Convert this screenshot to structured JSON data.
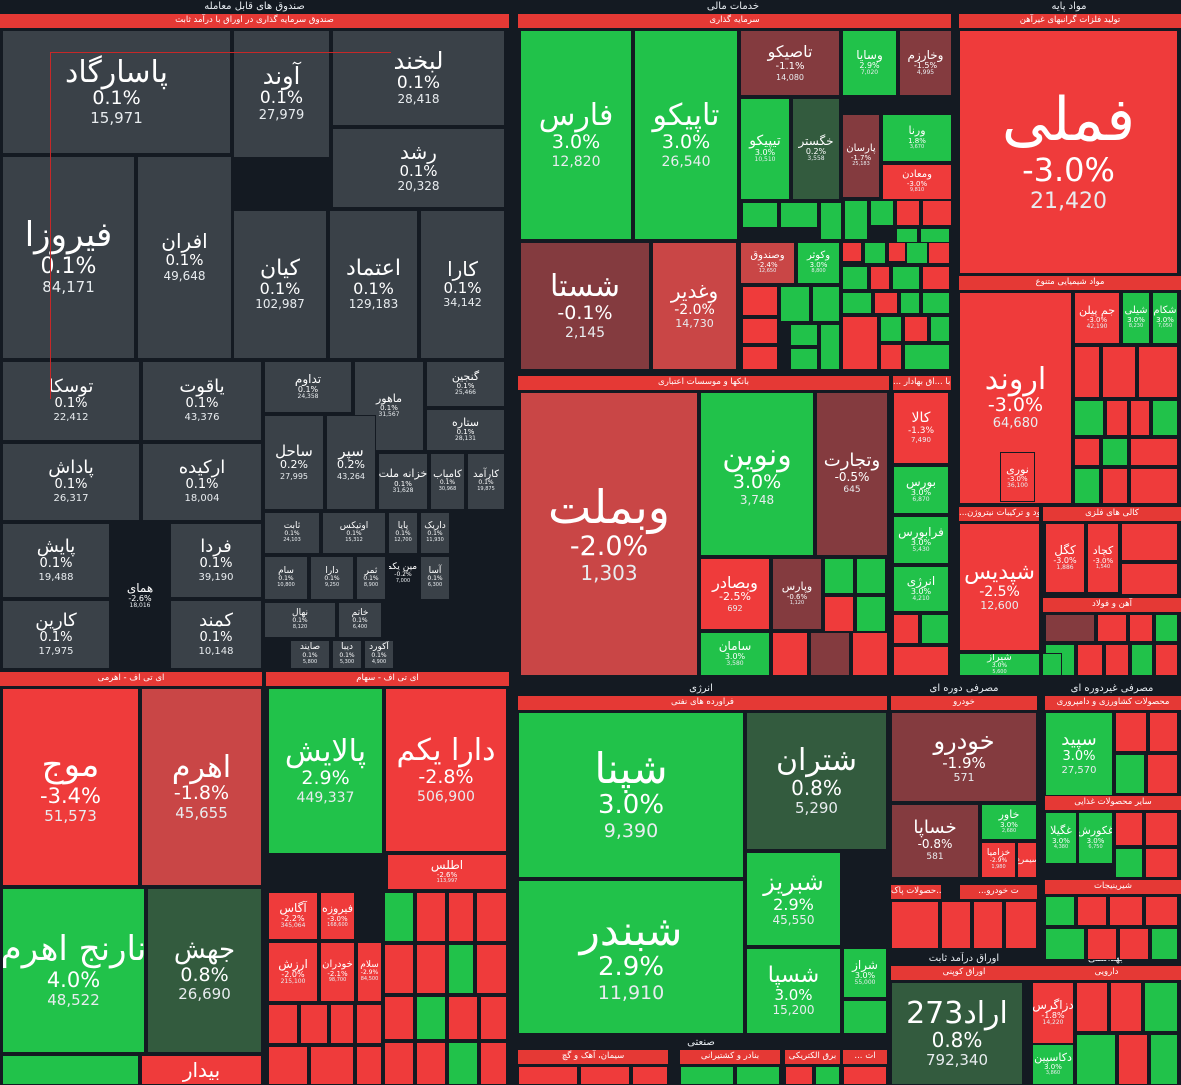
{
  "colors": {
    "bg": "#141a22",
    "neutral": "#3a4148",
    "neutral_dark": "#2f363d",
    "green_strong": "#21c24a",
    "green_mid": "#2ea24a",
    "green_dark": "#335b3e",
    "red_strong": "#ef3b3b",
    "red_mid": "#c94646",
    "red_dark": "#843b3f",
    "header_red": "#e53935"
  },
  "sectors": [
    {
      "id": "funds",
      "title": "صندوق های قابل معامله"
    },
    {
      "id": "finance",
      "title": "خدمات مالی"
    },
    {
      "id": "basic",
      "title": "مواد پایه"
    },
    {
      "id": "energy",
      "title": "انرژی"
    },
    {
      "id": "periodic",
      "title": "مصرفی دوره ای"
    },
    {
      "id": "nonperiodic",
      "title": "مصرفی غیردوره ای"
    },
    {
      "id": "fixed",
      "title": "اوراق درآمد ثابت"
    },
    {
      "id": "health",
      "title": "بهداشتی"
    },
    {
      "id": "industrial",
      "title": "صنعتی"
    }
  ],
  "industries": [
    {
      "title": "صندوق سرمایه گذاری در اوراق با درآمد ثابت"
    },
    {
      "title": "سرمایه گذاری"
    },
    {
      "title": "تولید فلزات گرانبهای غیرآهن"
    },
    {
      "title": "مواد شیمیایی متنوع"
    },
    {
      "title": "بانکها و موسسات اعتباری"
    },
    {
      "title": "... و اوراق بهادار"
    },
    {
      "title": "... با"
    },
    {
      "title": "...ود و ترکیبات نیتروژن"
    },
    {
      "title": "کالی های فلزی"
    },
    {
      "title": "آهن و فولاد"
    },
    {
      "title": "ای تی اف - اهرمی"
    },
    {
      "title": "ای تی اف - سهام"
    },
    {
      "title": "فراورده های نفتی"
    },
    {
      "title": "خودرو"
    },
    {
      "title": "محصولات کشاورزی و دامپروری"
    },
    {
      "title": "سایر محصولات غذایی"
    },
    {
      "title": "شیرینیجات"
    },
    {
      "title": "اوراق کوپنی"
    },
    {
      "title": "دارویی"
    },
    {
      "title": "سیمان، آهک و گچ"
    },
    {
      "title": "بنادر و کشتیرانی"
    },
    {
      "title": "برق الکتریکی"
    },
    {
      "title": "... ات"
    },
    {
      "title": "سایت کننده ...حصولات پاک"
    },
    {
      "title": "...ت خودرو"
    }
  ],
  "tiles": [
    {
      "name": "پاسارگاد",
      "pct": "0.1%",
      "val": "15,971"
    },
    {
      "name": "آوند",
      "pct": "0.1%",
      "val": "27,979"
    },
    {
      "name": "لبخند",
      "pct": "0.1%",
      "val": "28,418"
    },
    {
      "name": "رشد",
      "pct": "0.1%",
      "val": "20,328"
    },
    {
      "name": "فیروزا",
      "pct": "0.1%",
      "val": "84,171"
    },
    {
      "name": "افران",
      "pct": "0.1%",
      "val": "49,648"
    },
    {
      "name": "کیان",
      "pct": "0.1%",
      "val": "102,987"
    },
    {
      "name": "اعتماد",
      "pct": "0.1%",
      "val": "129,183"
    },
    {
      "name": "کارا",
      "pct": "0.1%",
      "val": "34,142"
    },
    {
      "name": "توسکا",
      "pct": "0.1%",
      "val": "22,412"
    },
    {
      "name": "یاقوت",
      "pct": "0.1%",
      "val": "43,376"
    },
    {
      "name": "تداوم",
      "pct": "0.1%",
      "val": "24,358"
    },
    {
      "name": "ماهور",
      "pct": "0.1%",
      "val": "31,567"
    },
    {
      "name": "گنجین",
      "pct": "0.1%",
      "val": "25,466"
    },
    {
      "name": "ستاره",
      "pct": "0.1%",
      "val": "28,131"
    },
    {
      "name": "پاداش",
      "pct": "0.1%",
      "val": "26,317"
    },
    {
      "name": "ارکیده",
      "pct": "0.1%",
      "val": "18,004"
    },
    {
      "name": "ساحل",
      "pct": "0.2%",
      "val": "27,995"
    },
    {
      "name": "سپر",
      "pct": "0.2%",
      "val": "43,264"
    },
    {
      "name": "خزانه ملت",
      "pct": "0.1%",
      "val": "31,628"
    },
    {
      "name": "کامیاب",
      "pct": "0.1%",
      "val": "30,968"
    },
    {
      "name": "کارآمد",
      "pct": "0.1%",
      "val": "19,875"
    },
    {
      "name": "پایش",
      "pct": "0.1%",
      "val": "19,488"
    },
    {
      "name": "فردا",
      "pct": "0.1%",
      "val": "39,190"
    },
    {
      "name": "همای",
      "pct": "-2.6%",
      "val": "18,016"
    },
    {
      "name": "کارین",
      "pct": "0.1%",
      "val": "17,975"
    },
    {
      "name": "کمند",
      "pct": "0.1%",
      "val": "10,148"
    },
    {
      "name": "ثابت",
      "pct": "0.1%",
      "val": "24,103"
    },
    {
      "name": "اوتیکس",
      "pct": "0.1%",
      "val": "15,312"
    },
    {
      "name": "پایا",
      "pct": "0.1%",
      "val": "12,700"
    },
    {
      "name": "داریک",
      "pct": "0.1%",
      "val": "11,930"
    },
    {
      "name": "سام",
      "pct": "0.1%",
      "val": "10,800"
    },
    {
      "name": "دارا",
      "pct": "0.1%",
      "val": "9,250"
    },
    {
      "name": "ثمر",
      "pct": "0.1%",
      "val": "8,900"
    },
    {
      "name": "امین یکم",
      "pct": "-0.2%",
      "val": "7,000"
    },
    {
      "name": "آسا",
      "pct": "0.1%",
      "val": "6,300"
    },
    {
      "name": "نهال",
      "pct": "0.1%",
      "val": "8,120"
    },
    {
      "name": "خاتم",
      "pct": "0.1%",
      "val": "6,400"
    },
    {
      "name": "صایند",
      "pct": "0.1%",
      "val": "5,800"
    },
    {
      "name": "دیبا",
      "pct": "0.1%",
      "val": "5,300"
    },
    {
      "name": "آکورد",
      "pct": "0.1%",
      "val": "4,900"
    },
    {
      "name": "فارس",
      "pct": "3.0%",
      "val": "12,820"
    },
    {
      "name": "تاپیکو",
      "pct": "3.0%",
      "val": "26,540"
    },
    {
      "name": "تاصیکو",
      "pct": "-1.1%",
      "val": "14,080"
    },
    {
      "name": "وسایا",
      "pct": "2.9%",
      "val": "7,020"
    },
    {
      "name": "وخارزم",
      "pct": "-1.5%",
      "val": "4,995"
    },
    {
      "name": "تیپیکو",
      "pct": "3.0%",
      "val": "10,510"
    },
    {
      "name": "خگستر",
      "pct": "0.2%",
      "val": "3,558"
    },
    {
      "name": "پارسان",
      "pct": "-1.7%",
      "val": "25,183"
    },
    {
      "name": "ورنا",
      "pct": "1.8%",
      "val": "3,670"
    },
    {
      "name": "ومعادن",
      "pct": "-3.0%",
      "val": "9,810"
    },
    {
      "name": "شستا",
      "pct": "-0.1%",
      "val": "2,145"
    },
    {
      "name": "وغدیر",
      "pct": "-2.0%",
      "val": "14,730"
    },
    {
      "name": "وصندوق",
      "pct": "-2.4%",
      "val": "12,650"
    },
    {
      "name": "وکوثر",
      "pct": "3.0%",
      "val": "8,800"
    },
    {
      "name": "فملی",
      "pct": "-3.0%",
      "val": "21,420"
    },
    {
      "name": "اروند",
      "pct": "-3.0%",
      "val": "64,680"
    },
    {
      "name": "نوری",
      "pct": "-3.0%",
      "val": "36,100"
    },
    {
      "name": "جم پیلن",
      "pct": "-3.0%",
      "val": "42,190"
    },
    {
      "name": "شیلی",
      "pct": "3.0%",
      "val": "8,230"
    },
    {
      "name": "شکام",
      "pct": "3.0%",
      "val": "7,050"
    },
    {
      "name": "وبملت",
      "pct": "-2.0%",
      "val": "1,303"
    },
    {
      "name": "ونوین",
      "pct": "3.0%",
      "val": "3,748"
    },
    {
      "name": "وتجارت",
      "pct": "-0.5%",
      "val": "645"
    },
    {
      "name": "وبصادر",
      "pct": "-2.5%",
      "val": "692"
    },
    {
      "name": "وپارس",
      "pct": "-0.6%",
      "val": "1,120"
    },
    {
      "name": "سامان",
      "pct": "3.0%",
      "val": "3,580"
    },
    {
      "name": "کالا",
      "pct": "-1.3%",
      "val": "7,490"
    },
    {
      "name": "بورس",
      "pct": "3.0%",
      "val": "6,870"
    },
    {
      "name": "فرابورس",
      "pct": "3.0%",
      "val": "5,430"
    },
    {
      "name": "انرژی",
      "pct": "3.0%",
      "val": "4,210"
    },
    {
      "name": "شپدیس",
      "pct": "-2.5%",
      "val": "12,600"
    },
    {
      "name": "کگل",
      "pct": "-3.0%",
      "val": "1,886"
    },
    {
      "name": "کچاد",
      "pct": "-3.0%",
      "val": "1,540"
    },
    {
      "name": "شیراز",
      "pct": "3.0%",
      "val": "5,600"
    },
    {
      "name": "موج",
      "pct": "-3.4%",
      "val": "51,573"
    },
    {
      "name": "اهرم",
      "pct": "-1.8%",
      "val": "45,655"
    },
    {
      "name": "نارنج اهرم",
      "pct": "4.0%",
      "val": "48,522"
    },
    {
      "name": "جهش",
      "pct": "0.8%",
      "val": "26,690"
    },
    {
      "name": "بیدار",
      "pct": "",
      "val": ""
    },
    {
      "name": "پالایش",
      "pct": "2.9%",
      "val": "449,337"
    },
    {
      "name": "دارا یکم",
      "pct": "-2.8%",
      "val": "506,900"
    },
    {
      "name": "اطلس",
      "pct": "-2.6%",
      "val": "113,997"
    },
    {
      "name": "آگاس",
      "pct": "-2.2%",
      "val": "345,064"
    },
    {
      "name": "فیروزه",
      "pct": "-3.0%",
      "val": "168,600"
    },
    {
      "name": "ارزش",
      "pct": "-2.0%",
      "val": "215,100"
    },
    {
      "name": "خودران",
      "pct": "-2.1%",
      "val": "98,700"
    },
    {
      "name": "سلام",
      "pct": "-2.9%",
      "val": "84,500"
    },
    {
      "name": "شپنا",
      "pct": "3.0%",
      "val": "9,390"
    },
    {
      "name": "شتران",
      "pct": "0.8%",
      "val": "5,290"
    },
    {
      "name": "شبندر",
      "pct": "2.9%",
      "val": "11,910"
    },
    {
      "name": "شبریز",
      "pct": "2.9%",
      "val": "45,550"
    },
    {
      "name": "شسپا",
      "pct": "3.0%",
      "val": "15,200"
    },
    {
      "name": "شراز",
      "pct": "3.0%",
      "val": "55,000"
    },
    {
      "name": "خودرو",
      "pct": "-1.9%",
      "val": "571"
    },
    {
      "name": "خساپا",
      "pct": "-0.8%",
      "val": "581"
    },
    {
      "name": "خاور",
      "pct": "3.0%",
      "val": "2,680"
    },
    {
      "name": "خزامیا",
      "pct": "-2.9%",
      "val": "1,980"
    },
    {
      "name": "سیمرغ",
      "pct": "",
      "val": ""
    },
    {
      "name": "سپید",
      "pct": "3.0%",
      "val": "27,570"
    },
    {
      "name": "غکورش",
      "pct": "3.0%",
      "val": "6,750"
    },
    {
      "name": "غگیلا",
      "pct": "3.0%",
      "val": "4,380"
    },
    {
      "name": "273اراد",
      "pct": "0.8%",
      "val": "792,340"
    },
    {
      "name": "دزاگرس",
      "pct": "-1.8%",
      "val": "14,220"
    },
    {
      "name": "دکاسپین",
      "pct": "3.0%",
      "val": "3,860"
    }
  ]
}
